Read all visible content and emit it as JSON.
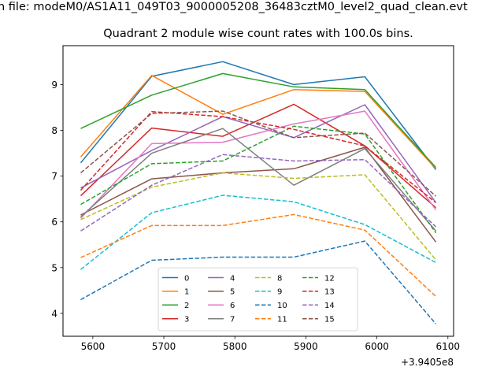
{
  "figure": {
    "suptitle": "n file: modeM0/AS1A11_049T03_9000005208_36483cztM0_level2_quad_clean.evt",
    "title": "Quadrant 2 module wise count rates with 100.0s bins.",
    "x_offset_label": "+3.9405e8"
  },
  "chart_data": {
    "type": "line",
    "title": "Quadrant 2 module wise count rates with 100.0s bins.",
    "xlabel": "",
    "ylabel": "",
    "x_offset": 394050000,
    "x": [
      5583,
      5683,
      5783,
      5883,
      5983,
      6083
    ],
    "xlim": [
      5558,
      6108
    ],
    "ylim": [
      3.5,
      9.85
    ],
    "xticks": [
      5600,
      5700,
      5800,
      5900,
      6000,
      6100
    ],
    "yticks": [
      4,
      5,
      6,
      7,
      8,
      9
    ],
    "grid": false,
    "legend": {
      "placement": "lower center",
      "columns": 4
    },
    "series": [
      {
        "name": "0",
        "color": "#1f77b4",
        "dash": "solid",
        "values": [
          7.29,
          9.18,
          9.5,
          9.0,
          9.17,
          7.14
        ]
      },
      {
        "name": "1",
        "color": "#ff7f0e",
        "dash": "solid",
        "values": [
          7.42,
          9.2,
          8.35,
          8.89,
          8.85,
          7.16
        ]
      },
      {
        "name": "2",
        "color": "#2ca02c",
        "dash": "solid",
        "values": [
          8.04,
          8.77,
          9.24,
          8.95,
          8.89,
          7.19
        ]
      },
      {
        "name": "3",
        "color": "#d62728",
        "dash": "solid",
        "values": [
          6.57,
          8.05,
          7.87,
          8.57,
          7.66,
          6.31
        ]
      },
      {
        "name": "4",
        "color": "#9467bd",
        "dash": "solid",
        "values": [
          6.74,
          7.56,
          8.3,
          7.84,
          8.56,
          6.42
        ]
      },
      {
        "name": "5",
        "color": "#8c564b",
        "dash": "solid",
        "values": [
          6.15,
          6.94,
          7.07,
          7.16,
          7.63,
          5.56
        ]
      },
      {
        "name": "6",
        "color": "#e377c2",
        "dash": "solid",
        "values": [
          6.08,
          7.71,
          7.74,
          8.14,
          8.42,
          6.26
        ]
      },
      {
        "name": "7",
        "color": "#7f7f7f",
        "dash": "solid",
        "values": [
          6.11,
          7.5,
          8.04,
          6.8,
          7.6,
          5.8
        ]
      },
      {
        "name": "8",
        "color": "#bcbd22",
        "dash": "dashed",
        "values": [
          6.05,
          6.76,
          7.07,
          6.95,
          7.03,
          5.17
        ]
      },
      {
        "name": "9",
        "color": "#17becf",
        "dash": "dashed",
        "values": [
          4.96,
          6.2,
          6.58,
          6.44,
          5.94,
          5.11
        ]
      },
      {
        "name": "10",
        "color": "#1f77b4",
        "dash": "dashed",
        "values": [
          4.3,
          5.16,
          5.23,
          5.23,
          5.58,
          3.77
        ]
      },
      {
        "name": "11",
        "color": "#ff7f0e",
        "dash": "dashed",
        "values": [
          5.22,
          5.92,
          5.92,
          6.16,
          5.82,
          4.37
        ]
      },
      {
        "name": "12",
        "color": "#2ca02c",
        "dash": "dashed",
        "values": [
          6.38,
          7.27,
          7.33,
          8.09,
          7.92,
          5.76
        ]
      },
      {
        "name": "13",
        "color": "#d62728",
        "dash": "dashed",
        "values": [
          6.69,
          8.41,
          8.3,
          8.02,
          7.66,
          6.42
        ]
      },
      {
        "name": "14",
        "color": "#9467bd",
        "dash": "dashed",
        "values": [
          5.8,
          6.8,
          7.47,
          7.33,
          7.36,
          5.89
        ]
      },
      {
        "name": "15",
        "color": "#8c564b",
        "dash": "dashed",
        "values": [
          7.07,
          8.37,
          8.42,
          7.84,
          7.94,
          6.56
        ]
      }
    ]
  }
}
